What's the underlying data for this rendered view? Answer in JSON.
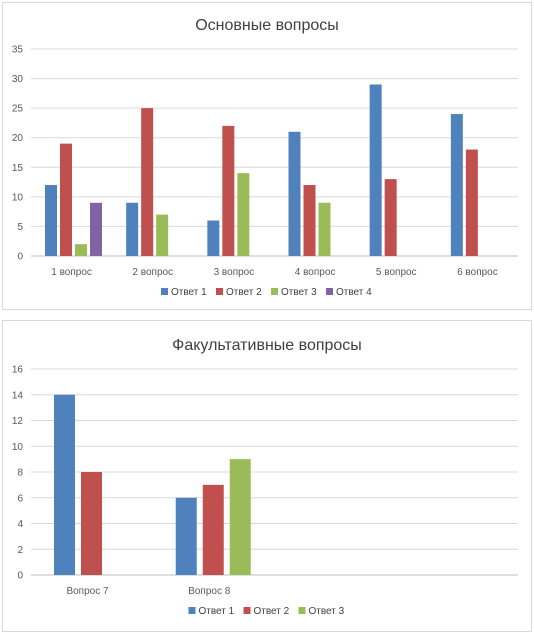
{
  "chart_data": [
    {
      "type": "bar",
      "title": "Основные вопросы",
      "categories": [
        "1 вопрос",
        "2 вопрос",
        "3 вопрос",
        "4 вопрос",
        "5 вопрос",
        "6 вопрос"
      ],
      "series": [
        {
          "name": "Ответ 1",
          "color": "#4f81bd",
          "values": [
            12,
            9,
            6,
            21,
            29,
            24
          ]
        },
        {
          "name": "Ответ 2",
          "color": "#c0504d",
          "values": [
            19,
            25,
            22,
            12,
            13,
            18
          ]
        },
        {
          "name": "Ответ 3",
          "color": "#9bbb59",
          "values": [
            2,
            7,
            14,
            9,
            null,
            null
          ]
        },
        {
          "name": "Ответ 4",
          "color": "#8064a2",
          "values": [
            9,
            null,
            null,
            null,
            null,
            null
          ]
        }
      ],
      "ylim": [
        0,
        35
      ],
      "yticks": [
        "0",
        "5",
        "10",
        "15",
        "20",
        "25",
        "30",
        "35"
      ],
      "grid": true,
      "legend": "bottom"
    },
    {
      "type": "bar",
      "title": "Факультативные вопросы",
      "categories": [
        "Вопрос 7",
        "Вопрос 8"
      ],
      "series": [
        {
          "name": "Ответ 1",
          "color": "#4f81bd",
          "values": [
            14,
            6
          ]
        },
        {
          "name": "Ответ 2",
          "color": "#c0504d",
          "values": [
            8,
            7
          ]
        },
        {
          "name": "Ответ 3",
          "color": "#9bbb59",
          "values": [
            null,
            9
          ]
        }
      ],
      "ylim": [
        0,
        16
      ],
      "yticks": [
        "0",
        "2",
        "4",
        "6",
        "8",
        "10",
        "12",
        "14",
        "16"
      ],
      "grid": true,
      "legend": "bottom"
    }
  ]
}
